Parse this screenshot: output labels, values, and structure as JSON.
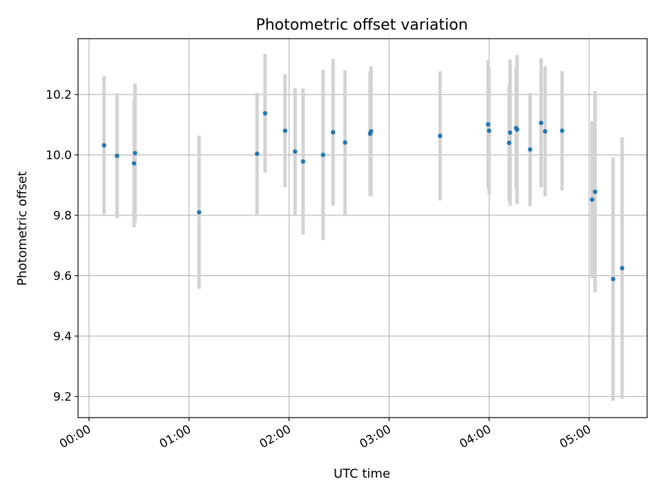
{
  "chart_data": {
    "type": "scatter",
    "title": "Photometric offset variation",
    "xlabel": "UTC time",
    "ylabel": "Photometric offset",
    "grid": true,
    "xlim": [
      -0.11,
      5.58
    ],
    "ylim": [
      9.13,
      10.385
    ],
    "x_ticks": [
      0,
      1,
      2,
      3,
      4,
      5
    ],
    "x_tick_labels": [
      "00:00",
      "01:00",
      "02:00",
      "03:00",
      "04:00",
      "05:00"
    ],
    "y_ticks": [
      9.2,
      9.4,
      9.6,
      9.8,
      10.0,
      10.2
    ],
    "y_tick_labels": [
      "9.2",
      "9.4",
      "9.6",
      "9.8",
      "10.0",
      "10.2"
    ],
    "colors": {
      "point": "#1f77b4",
      "errorbar": "#d3d3d3",
      "grid": "#b0b0b0",
      "spine": "#000000"
    },
    "points": [
      {
        "x": 0.15,
        "y": 10.032,
        "err": 0.228
      },
      {
        "x": 0.28,
        "y": 9.997,
        "err": 0.207
      },
      {
        "x": 0.45,
        "y": 9.972,
        "err": 0.212
      },
      {
        "x": 0.46,
        "y": 10.006,
        "err": 0.23
      },
      {
        "x": 1.1,
        "y": 9.81,
        "err": 0.254
      },
      {
        "x": 1.68,
        "y": 10.004,
        "err": 0.202
      },
      {
        "x": 1.76,
        "y": 10.138,
        "err": 0.197
      },
      {
        "x": 1.96,
        "y": 10.08,
        "err": 0.187
      },
      {
        "x": 2.06,
        "y": 10.011,
        "err": 0.211
      },
      {
        "x": 2.14,
        "y": 9.978,
        "err": 0.242
      },
      {
        "x": 2.34,
        "y": 10.0,
        "err": 0.282
      },
      {
        "x": 2.44,
        "y": 10.075,
        "err": 0.243
      },
      {
        "x": 2.56,
        "y": 10.041,
        "err": 0.239
      },
      {
        "x": 2.81,
        "y": 10.07,
        "err": 0.207
      },
      {
        "x": 2.82,
        "y": 10.078,
        "err": 0.215
      },
      {
        "x": 3.51,
        "y": 10.063,
        "err": 0.214
      },
      {
        "x": 3.99,
        "y": 10.101,
        "err": 0.212
      },
      {
        "x": 4.0,
        "y": 10.08,
        "err": 0.21
      },
      {
        "x": 4.2,
        "y": 10.04,
        "err": 0.193
      },
      {
        "x": 4.21,
        "y": 10.074,
        "err": 0.242
      },
      {
        "x": 4.27,
        "y": 10.089,
        "err": 0.2
      },
      {
        "x": 4.28,
        "y": 10.084,
        "err": 0.247
      },
      {
        "x": 4.41,
        "y": 10.018,
        "err": 0.187
      },
      {
        "x": 4.52,
        "y": 10.106,
        "err": 0.214
      },
      {
        "x": 4.56,
        "y": 10.078,
        "err": 0.215
      },
      {
        "x": 4.73,
        "y": 10.08,
        "err": 0.198
      },
      {
        "x": 5.03,
        "y": 9.852,
        "err": 0.26
      },
      {
        "x": 5.06,
        "y": 9.878,
        "err": 0.333
      },
      {
        "x": 5.24,
        "y": 9.589,
        "err": 0.403
      },
      {
        "x": 5.33,
        "y": 9.625,
        "err": 0.433
      }
    ]
  }
}
